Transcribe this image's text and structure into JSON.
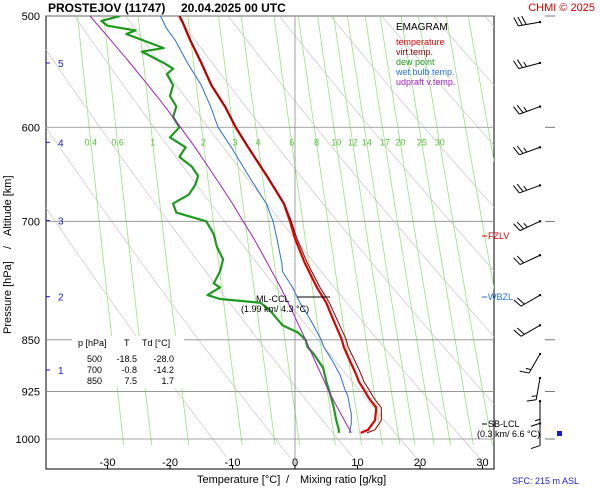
{
  "header": {
    "station": "PROSTEJOV (11747)",
    "datetime": "20.04.2025 00 UTC",
    "copyright": "CHMI © 2025"
  },
  "legend": {
    "title": "EMAGRAM",
    "items": [
      {
        "label": "temperature",
        "color": "#e00000"
      },
      {
        "label": "virt.temp.",
        "color": "#8b0000"
      },
      {
        "label": "dew point",
        "color": "#1e9a1e"
      },
      {
        "label": "wet bulb temp.",
        "color": "#2a6fd6"
      },
      {
        "label": "udpraft v.temp.",
        "color": "#a020c0"
      }
    ]
  },
  "levels_table": {
    "headers": [
      "p [hPa]",
      "T",
      "Td [°C]"
    ],
    "rows": [
      [
        "500",
        "-18.5",
        "-28.0"
      ],
      [
        "700",
        "-0.8",
        "-14.2"
      ],
      [
        "850",
        "7.5",
        "1.7"
      ]
    ]
  },
  "annotations": {
    "ml_ccl": "ML-CCL",
    "ml_ccl_detail": "(1.99 km/ 4.3 °C)",
    "fzlv": "FZLV",
    "wbzl": "WBZL",
    "sb_lcl": "SB-LCL",
    "sb_lcl_detail": "(0.3 km/ 6.6 °C)",
    "sfc": "SFC: 215 m ASL"
  },
  "chart_data": {
    "type": "line",
    "title": "EMAGRAM",
    "xlabel": "Temperature [°C]",
    "xlabel_sep": "/",
    "xlabel2": "Mixing ratio [g/kg]",
    "ylabel": "Pressure [hPa]",
    "ylabel_sep": "/",
    "ylabel2": "Altitude [km]",
    "x_ticks": [
      -30,
      -20,
      -10,
      0,
      10,
      20,
      30
    ],
    "xlim": [
      -37.5,
      31
    ],
    "y_ticks": [
      500,
      600,
      700,
      850,
      925,
      1000
    ],
    "ylim": [
      500,
      1015
    ],
    "y_scale": "log",
    "altitude_ticks": [
      {
        "km": 1,
        "p": 893
      },
      {
        "km": 2,
        "p": 792
      },
      {
        "km": 3,
        "p": 699
      },
      {
        "km": 4,
        "p": 615
      },
      {
        "km": 5,
        "p": 540
      }
    ],
    "mixing_ratio_labels": [
      "0.4",
      "0.6",
      "1",
      "2",
      "3",
      "4",
      "6",
      "8",
      "10",
      "12",
      "14",
      "17",
      "20",
      "25",
      "30"
    ],
    "series": [
      {
        "name": "temperature",
        "color": "#e00000",
        "p": [
          990,
          985,
          970,
          950,
          935,
          925,
          910,
          900,
          880,
          860,
          850,
          820,
          800,
          780,
          750,
          720,
          700,
          680,
          650,
          620,
          600,
          580,
          560,
          540,
          520,
          505,
          500
        ],
        "t": [
          10.5,
          11.7,
          12.8,
          13.0,
          11.8,
          11.2,
          10.2,
          9.8,
          8.8,
          7.8,
          7.5,
          6.0,
          5.0,
          3.5,
          1.6,
          0.0,
          -0.8,
          -1.8,
          -4.5,
          -7.5,
          -9.5,
          -11.2,
          -13.4,
          -15.0,
          -16.8,
          -18.0,
          -18.5
        ]
      },
      {
        "name": "virt.temp.",
        "color": "#8b0000",
        "p": [
          990,
          985,
          970,
          950,
          935,
          925,
          910,
          900,
          880,
          860,
          850,
          820,
          800,
          780,
          750,
          720,
          700,
          680,
          650,
          620,
          600,
          580,
          560,
          540,
          520,
          505,
          500
        ],
        "t": [
          11.5,
          12.8,
          13.8,
          13.8,
          12.6,
          12.0,
          11.0,
          10.6,
          9.6,
          8.5,
          8.2,
          6.6,
          5.5,
          4.0,
          2.0,
          0.3,
          -0.6,
          -1.7,
          -4.4,
          -7.4,
          -9.4,
          -11.1,
          -13.3,
          -14.9,
          -16.7,
          -17.9,
          -18.4
        ]
      },
      {
        "name": "dew point",
        "color": "#1e9a1e",
        "p": [
          990,
          985,
          970,
          950,
          935,
          925,
          910,
          890,
          870,
          860,
          850,
          840,
          830,
          810,
          800,
          795,
          790,
          780,
          775,
          760,
          745,
          730,
          715,
          700,
          690,
          680,
          670,
          660,
          650,
          640,
          630,
          620,
          610,
          600,
          590,
          580,
          570,
          560,
          550,
          545,
          540,
          530,
          527,
          520,
          515,
          512,
          508,
          504,
          500
        ],
        "t": [
          7.0,
          7.0,
          6.6,
          6.2,
          5.8,
          5.5,
          5.0,
          4.5,
          3.0,
          2.0,
          1.7,
          0.5,
          -2.0,
          -4.0,
          -5.5,
          -12.0,
          -14.0,
          -12.0,
          -13.0,
          -12.0,
          -11.5,
          -12.5,
          -13.0,
          -14.2,
          -19.0,
          -19.5,
          -17.0,
          -16.0,
          -15.5,
          -16.5,
          -18.5,
          -17.5,
          -20.0,
          -18.5,
          -19.5,
          -19.0,
          -20.0,
          -19.5,
          -20.5,
          -19.5,
          -21.0,
          -24.5,
          -21.0,
          -24.5,
          -27.0,
          -25.5,
          -30.0,
          -31.0,
          -28.0
        ]
      },
      {
        "name": "wet bulb temp.",
        "color": "#2a6fd6",
        "p": [
          990,
          975,
          960,
          950,
          940,
          930,
          925,
          900,
          880,
          860,
          850,
          820,
          800,
          780,
          760,
          750,
          720,
          700,
          680,
          650,
          620,
          600,
          580,
          560,
          540,
          520,
          510,
          500
        ],
        "t": [
          8.7,
          9.0,
          9.0,
          8.8,
          8.6,
          8.4,
          8.1,
          7.2,
          6.0,
          4.6,
          4.2,
          2.3,
          0.8,
          -0.4,
          -2.0,
          -2.1,
          -2.9,
          -3.5,
          -4.6,
          -7.4,
          -10.2,
          -12.3,
          -13.5,
          -15.0,
          -17.2,
          -19.2,
          -20.6,
          -21.5
        ]
      },
      {
        "name": "udpraft v.temp.",
        "color": "#a020c0",
        "p": [
          990,
          950,
          925,
          900,
          880,
          860,
          850,
          830,
          810,
          800,
          780,
          760,
          740,
          720,
          700,
          680,
          660,
          640,
          620,
          600,
          580,
          560,
          540,
          520,
          500
        ],
        "t": [
          9.0,
          6.8,
          5.4,
          4.2,
          3.2,
          2.2,
          1.7,
          0.6,
          -0.5,
          -1.1,
          -2.3,
          -3.7,
          -5.1,
          -6.6,
          -8.3,
          -10.0,
          -11.9,
          -13.9,
          -16.0,
          -18.3,
          -20.8,
          -23.5,
          -26.4,
          -29.5,
          -32.8
        ]
      }
    ],
    "wind_barbs": [
      {
        "p": 505,
        "dir": 260,
        "kt": 30
      },
      {
        "p": 540,
        "dir": 255,
        "kt": 25
      },
      {
        "p": 580,
        "dir": 250,
        "kt": 25
      },
      {
        "p": 620,
        "dir": 250,
        "kt": 25
      },
      {
        "p": 660,
        "dir": 250,
        "kt": 25
      },
      {
        "p": 700,
        "dir": 245,
        "kt": 25
      },
      {
        "p": 740,
        "dir": 245,
        "kt": 20
      },
      {
        "p": 790,
        "dir": 240,
        "kt": 20
      },
      {
        "p": 830,
        "dir": 240,
        "kt": 20
      },
      {
        "p": 870,
        "dir": 210,
        "kt": 15
      },
      {
        "p": 905,
        "dir": 190,
        "kt": 15
      },
      {
        "p": 940,
        "dir": 180,
        "kt": 15
      },
      {
        "p": 975,
        "dir": 180,
        "kt": 10
      }
    ]
  }
}
